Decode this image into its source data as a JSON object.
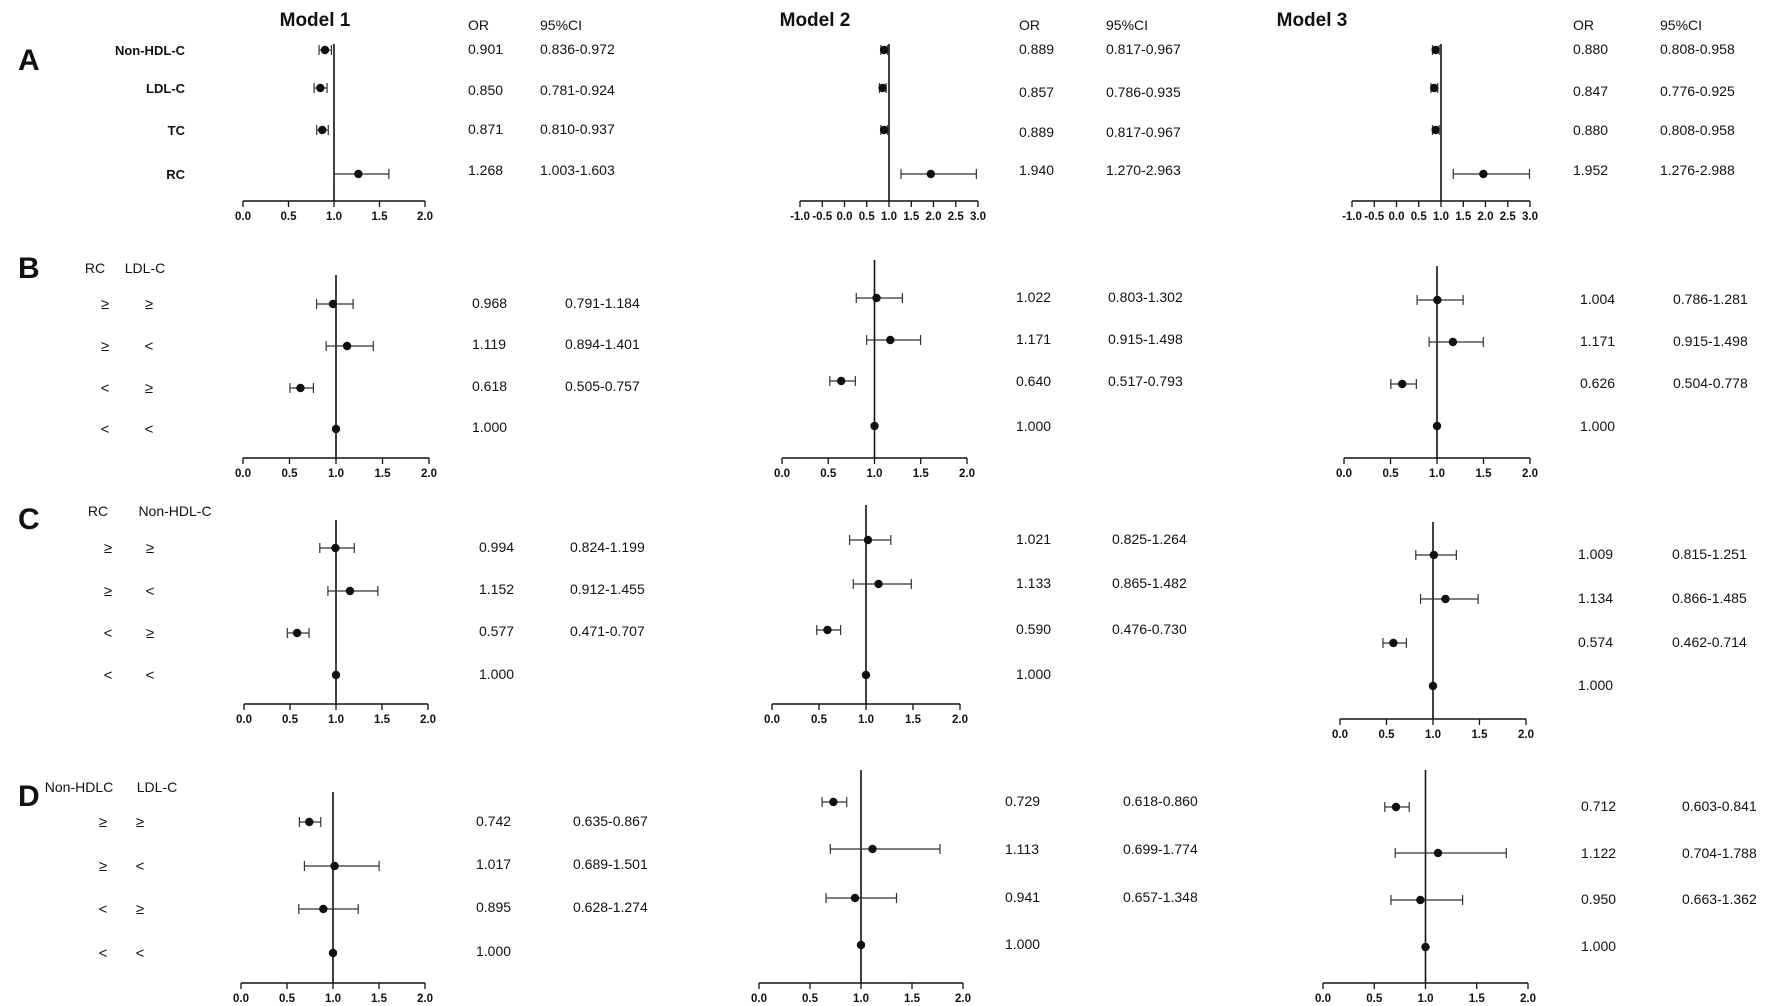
{
  "columns": [
    {
      "title": "Model 1"
    },
    {
      "title": "Model 2"
    },
    {
      "title": "Model 3"
    }
  ],
  "headers": {
    "or": "OR",
    "ci": "95%CI"
  },
  "panels": [
    {
      "letter": "A",
      "group_headers": [],
      "rows": [
        {
          "labels": [
            "Non-HDL-C"
          ]
        },
        {
          "labels": [
            "LDL-C"
          ]
        },
        {
          "labels": [
            "TC"
          ]
        },
        {
          "labels": [
            "RC"
          ]
        }
      ]
    },
    {
      "letter": "B",
      "group_headers": [
        "RC",
        "LDL-C"
      ],
      "rows": [
        {
          "labels": [
            "≥",
            "≥"
          ]
        },
        {
          "labels": [
            "≥",
            "<"
          ]
        },
        {
          "labels": [
            "<",
            "≥"
          ]
        },
        {
          "labels": [
            "<",
            "<"
          ]
        }
      ]
    },
    {
      "letter": "C",
      "group_headers": [
        "RC",
        "Non-HDL-C"
      ],
      "rows": [
        {
          "labels": [
            "≥",
            "≥"
          ]
        },
        {
          "labels": [
            "≥",
            "<"
          ]
        },
        {
          "labels": [
            "<",
            "≥"
          ]
        },
        {
          "labels": [
            "<",
            "<"
          ]
        }
      ]
    },
    {
      "letter": "D",
      "group_headers": [
        "Non-HDLC",
        "LDL-C"
      ],
      "rows": [
        {
          "labels": [
            "≥",
            "≥"
          ]
        },
        {
          "labels": [
            "≥",
            "<"
          ]
        },
        {
          "labels": [
            "<",
            "≥"
          ]
        },
        {
          "labels": [
            "<",
            "<"
          ]
        }
      ]
    }
  ],
  "chart_data": {
    "type": "forest",
    "reference_line": 1.0,
    "grid": false,
    "axis_ticks": {
      "A_model1": [
        "0.0",
        "0.5",
        "1.0",
        "1.5",
        "2.0"
      ],
      "A_model23": [
        "-1.0",
        "-0.5",
        "0.0",
        "0.5",
        "1.0",
        "1.5",
        "2.0",
        "2.5",
        "3.0"
      ],
      "standard": [
        "0.0",
        "0.5",
        "1.0",
        "1.5",
        "2.0"
      ]
    },
    "estimates": [
      [
        [
          {
            "or": "0.901",
            "ci": "0.836-0.972"
          },
          {
            "or": "0.850",
            "ci": "0.781-0.924"
          },
          {
            "or": "0.871",
            "ci": "0.810-0.937"
          },
          {
            "or": "1.268",
            "ci": "1.003-1.603"
          }
        ],
        [
          {
            "or": "0.889",
            "ci": "0.817-0.967"
          },
          {
            "or": "0.857",
            "ci": "0.786-0.935"
          },
          {
            "or": "0.889",
            "ci": "0.817-0.967"
          },
          {
            "or": "1.940",
            "ci": "1.270-2.963"
          }
        ],
        [
          {
            "or": "0.880",
            "ci": "0.808-0.958"
          },
          {
            "or": "0.847",
            "ci": "0.776-0.925"
          },
          {
            "or": "0.880",
            "ci": "0.808-0.958"
          },
          {
            "or": "1.952",
            "ci": "1.276-2.988"
          }
        ]
      ],
      [
        [
          {
            "or": "0.968",
            "ci": "0.791-1.184"
          },
          {
            "or": "1.119",
            "ci": "0.894-1.401"
          },
          {
            "or": "0.618",
            "ci": "0.505-0.757"
          },
          {
            "or": "1.000",
            "ci": ""
          }
        ],
        [
          {
            "or": "1.022",
            "ci": "0.803-1.302"
          },
          {
            "or": "1.171",
            "ci": "0.915-1.498"
          },
          {
            "or": "0.640",
            "ci": "0.517-0.793"
          },
          {
            "or": "1.000",
            "ci": ""
          }
        ],
        [
          {
            "or": "1.004",
            "ci": "0.786-1.281"
          },
          {
            "or": "1.171",
            "ci": "0.915-1.498"
          },
          {
            "or": "0.626",
            "ci": "0.504-0.778"
          },
          {
            "or": "1.000",
            "ci": ""
          }
        ]
      ],
      [
        [
          {
            "or": "0.994",
            "ci": "0.824-1.199"
          },
          {
            "or": "1.152",
            "ci": "0.912-1.455"
          },
          {
            "or": "0.577",
            "ci": "0.471-0.707"
          },
          {
            "or": "1.000",
            "ci": ""
          }
        ],
        [
          {
            "or": "1.021",
            "ci": "0.825-1.264"
          },
          {
            "or": "1.133",
            "ci": "0.865-1.482"
          },
          {
            "or": "0.590",
            "ci": "0.476-0.730"
          },
          {
            "or": "1.000",
            "ci": ""
          }
        ],
        [
          {
            "or": "1.009",
            "ci": "0.815-1.251"
          },
          {
            "or": "1.134",
            "ci": "0.866-1.485"
          },
          {
            "or": "0.574",
            "ci": "0.462-0.714"
          },
          {
            "or": "1.000",
            "ci": ""
          }
        ]
      ],
      [
        [
          {
            "or": "0.742",
            "ci": "0.635-0.867"
          },
          {
            "or": "1.017",
            "ci": "0.689-1.501"
          },
          {
            "or": "0.895",
            "ci": "0.628-1.274"
          },
          {
            "or": "1.000",
            "ci": ""
          }
        ],
        [
          {
            "or": "0.729",
            "ci": "0.618-0.860"
          },
          {
            "or": "1.113",
            "ci": "0.699-1.774"
          },
          {
            "or": "0.941",
            "ci": "0.657-1.348"
          },
          {
            "or": "1.000",
            "ci": ""
          }
        ],
        [
          {
            "or": "0.712",
            "ci": "0.603-0.841"
          },
          {
            "or": "1.122",
            "ci": "0.704-1.788"
          },
          {
            "or": "0.950",
            "ci": "0.663-1.362"
          },
          {
            "or": "1.000",
            "ci": ""
          }
        ]
      ]
    ]
  }
}
